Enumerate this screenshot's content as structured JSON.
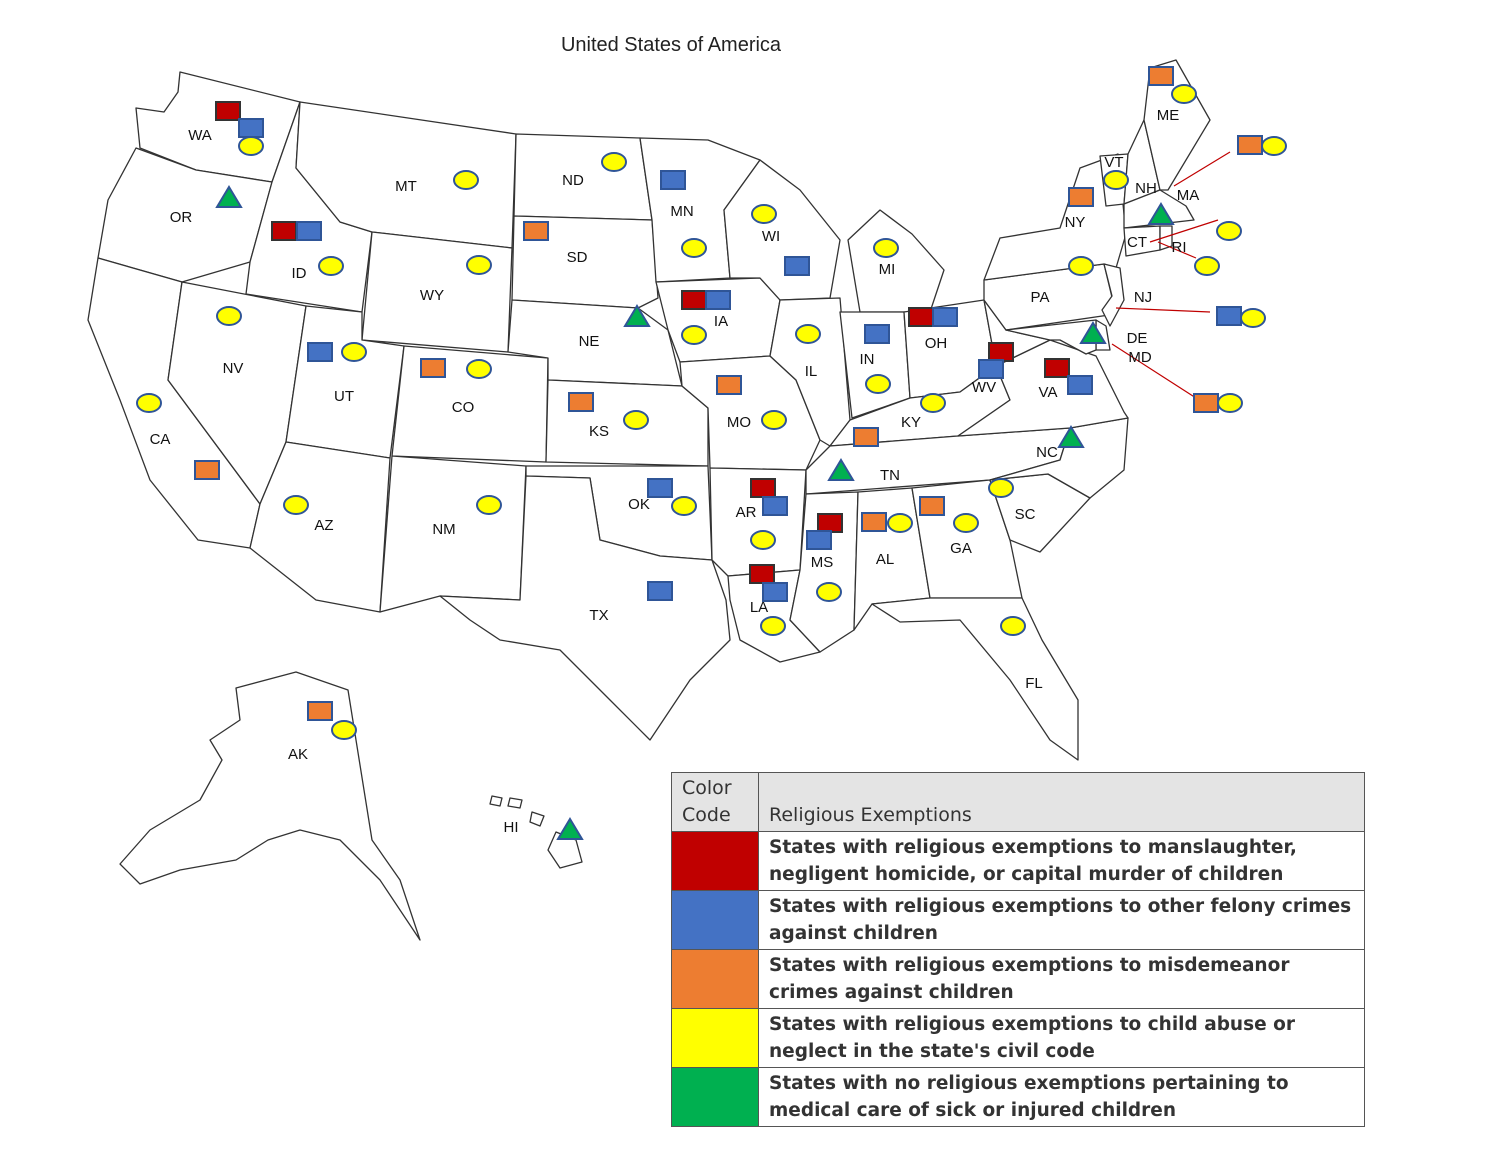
{
  "title": "United States of America",
  "colors": {
    "red": "#c00000",
    "blue": "#4472c4",
    "orange": "#ed7d31",
    "yellow": "#ffff00",
    "green": "#00b050",
    "marker_border": "#2f5597",
    "border": "#333333"
  },
  "legend": {
    "header_code": "Color Code",
    "header_title": "Religious Exemptions",
    "rows": [
      {
        "color": "#c00000",
        "text": "States with religious exemptions to manslaughter, negligent homicide, or capital murder of children"
      },
      {
        "color": "#4472c4",
        "text": "States with religious exemptions to other felony crimes against children"
      },
      {
        "color": "#ed7d31",
        "text": "States with religious exemptions to misdemeanor crimes against children"
      },
      {
        "color": "#ffff00",
        "text": "States with religious exemptions to child abuse or neglect in the state's civil code"
      },
      {
        "color": "#00b050",
        "text": "States with no religious exemptions pertaining to medical care of sick or injured children"
      }
    ]
  },
  "states": [
    {
      "abbr": "WA",
      "markers": [
        "red",
        "blue",
        "yellow"
      ]
    },
    {
      "abbr": "OR",
      "markers": [
        "green"
      ]
    },
    {
      "abbr": "CA",
      "markers": [
        "yellow",
        "orange"
      ]
    },
    {
      "abbr": "ID",
      "markers": [
        "red",
        "blue",
        "yellow"
      ]
    },
    {
      "abbr": "NV",
      "markers": [
        "yellow"
      ]
    },
    {
      "abbr": "MT",
      "markers": [
        "yellow"
      ]
    },
    {
      "abbr": "WY",
      "markers": [
        "yellow"
      ]
    },
    {
      "abbr": "UT",
      "markers": [
        "blue",
        "yellow"
      ]
    },
    {
      "abbr": "CO",
      "markers": [
        "orange",
        "yellow"
      ]
    },
    {
      "abbr": "AZ",
      "markers": [
        "yellow"
      ]
    },
    {
      "abbr": "NM",
      "markers": [
        "yellow"
      ]
    },
    {
      "abbr": "ND",
      "markers": [
        "yellow"
      ]
    },
    {
      "abbr": "SD",
      "markers": [
        "orange"
      ]
    },
    {
      "abbr": "NE",
      "markers": [
        "green"
      ]
    },
    {
      "abbr": "KS",
      "markers": [
        "orange",
        "yellow"
      ]
    },
    {
      "abbr": "OK",
      "markers": [
        "blue",
        "yellow"
      ]
    },
    {
      "abbr": "TX",
      "markers": [
        "blue"
      ]
    },
    {
      "abbr": "MN",
      "markers": [
        "blue",
        "yellow"
      ]
    },
    {
      "abbr": "IA",
      "markers": [
        "red",
        "blue",
        "yellow"
      ]
    },
    {
      "abbr": "MO",
      "markers": [
        "orange",
        "yellow"
      ]
    },
    {
      "abbr": "AR",
      "markers": [
        "red",
        "blue",
        "yellow"
      ]
    },
    {
      "abbr": "LA",
      "markers": [
        "red",
        "blue",
        "yellow"
      ]
    },
    {
      "abbr": "WI",
      "markers": [
        "yellow",
        "blue"
      ]
    },
    {
      "abbr": "IL",
      "markers": [
        "yellow"
      ]
    },
    {
      "abbr": "MI",
      "markers": [
        "yellow"
      ]
    },
    {
      "abbr": "IN",
      "markers": [
        "blue",
        "yellow"
      ]
    },
    {
      "abbr": "OH",
      "markers": [
        "red",
        "blue"
      ]
    },
    {
      "abbr": "KY",
      "markers": [
        "yellow",
        "orange"
      ]
    },
    {
      "abbr": "TN",
      "markers": [
        "green"
      ]
    },
    {
      "abbr": "MS",
      "markers": [
        "red",
        "blue",
        "yellow"
      ]
    },
    {
      "abbr": "AL",
      "markers": [
        "orange",
        "yellow"
      ]
    },
    {
      "abbr": "GA",
      "markers": [
        "orange",
        "yellow"
      ]
    },
    {
      "abbr": "FL",
      "markers": [
        "yellow"
      ]
    },
    {
      "abbr": "SC",
      "markers": [
        "yellow"
      ]
    },
    {
      "abbr": "NC",
      "markers": [
        "green"
      ]
    },
    {
      "abbr": "VA",
      "markers": [
        "red",
        "blue"
      ]
    },
    {
      "abbr": "WV",
      "markers": [
        "red",
        "blue"
      ]
    },
    {
      "abbr": "PA",
      "markers": [
        "yellow"
      ]
    },
    {
      "abbr": "NY",
      "markers": [
        "orange"
      ]
    },
    {
      "abbr": "VT",
      "markers": [
        "yellow"
      ]
    },
    {
      "abbr": "NH",
      "markers": [
        "green"
      ]
    },
    {
      "abbr": "ME",
      "markers": [
        "orange",
        "yellow"
      ]
    },
    {
      "abbr": "MA",
      "markers": [
        "orange",
        "yellow"
      ]
    },
    {
      "abbr": "CT",
      "markers": [
        "yellow"
      ]
    },
    {
      "abbr": "RI",
      "markers": [
        "yellow"
      ]
    },
    {
      "abbr": "NJ",
      "markers": [
        "blue",
        "yellow"
      ]
    },
    {
      "abbr": "DE",
      "markers": [
        "green"
      ]
    },
    {
      "abbr": "MD",
      "markers": [
        "orange",
        "yellow"
      ]
    },
    {
      "abbr": "AK",
      "markers": [
        "orange",
        "yellow"
      ]
    },
    {
      "abbr": "HI",
      "markers": [
        "green"
      ]
    }
  ]
}
